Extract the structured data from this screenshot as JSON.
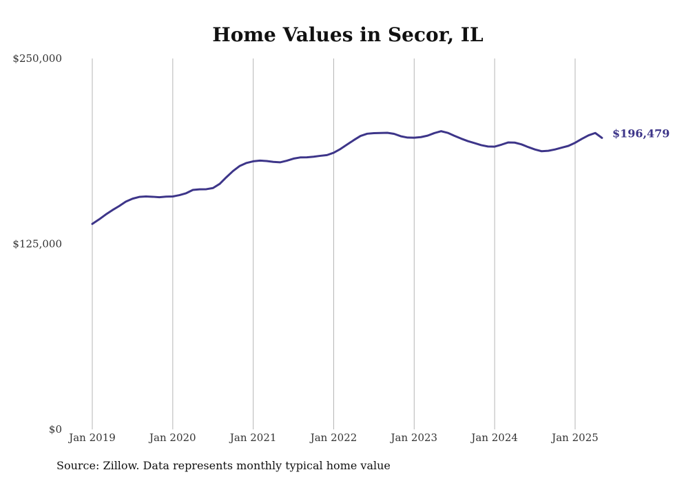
{
  "chart_data": {
    "type": "line",
    "title": "Home Values in Secor, IL",
    "xlabel": "",
    "ylabel": "",
    "ylim": [
      0,
      250000
    ],
    "xlim": [
      "2019-01",
      "2025-05"
    ],
    "grid": "vertical",
    "legend": "none",
    "line_color": "#3d3589",
    "grid_color": "#b5b5b5",
    "y_ticks": [
      {
        "value": 0,
        "label": "$0"
      },
      {
        "value": 125000,
        "label": "$125,000"
      },
      {
        "value": 250000,
        "label": "$250,000"
      }
    ],
    "x_ticks": [
      {
        "value": "2019-01",
        "label": "Jan 2019"
      },
      {
        "value": "2020-01",
        "label": "Jan 2020"
      },
      {
        "value": "2021-01",
        "label": "Jan 2021"
      },
      {
        "value": "2022-01",
        "label": "Jan 2022"
      },
      {
        "value": "2023-01",
        "label": "Jan 2023"
      },
      {
        "value": "2024-01",
        "label": "Jan 2024"
      },
      {
        "value": "2025-01",
        "label": "Jan 2025"
      }
    ],
    "end_label": "$196,479",
    "series": [
      {
        "x": [
          "2019-01",
          "2019-02",
          "2019-03",
          "2019-04",
          "2019-05",
          "2019-06",
          "2019-07",
          "2019-08",
          "2019-09",
          "2019-10",
          "2019-11",
          "2019-12",
          "2020-01",
          "2020-02",
          "2020-03",
          "2020-04",
          "2020-05",
          "2020-06",
          "2020-07",
          "2020-08",
          "2020-09",
          "2020-10",
          "2020-11",
          "2020-12",
          "2021-01",
          "2021-02",
          "2021-03",
          "2021-04",
          "2021-05",
          "2021-06",
          "2021-07",
          "2021-08",
          "2021-09",
          "2021-10",
          "2021-11",
          "2021-12",
          "2022-01",
          "2022-02",
          "2022-03",
          "2022-04",
          "2022-05",
          "2022-06",
          "2022-07",
          "2022-08",
          "2022-09",
          "2022-10",
          "2022-11",
          "2022-12",
          "2023-01",
          "2023-02",
          "2023-03",
          "2023-04",
          "2023-05",
          "2023-06",
          "2023-07",
          "2023-08",
          "2023-09",
          "2023-10",
          "2023-11",
          "2023-12",
          "2024-01",
          "2024-02",
          "2024-03",
          "2024-04",
          "2024-05",
          "2024-06",
          "2024-07",
          "2024-08",
          "2024-09",
          "2024-10",
          "2024-11",
          "2024-12",
          "2025-01",
          "2025-02",
          "2025-03",
          "2025-04",
          "2025-05"
        ],
        "values": [
          138500,
          141500,
          144800,
          147800,
          150500,
          153500,
          155500,
          156700,
          157000,
          156800,
          156500,
          156900,
          157000,
          157900,
          159200,
          161400,
          161800,
          161900,
          162700,
          165500,
          170000,
          174200,
          177600,
          179600,
          180700,
          181200,
          180900,
          180300,
          180000,
          181100,
          182500,
          183300,
          183400,
          183800,
          184400,
          184900,
          186500,
          189000,
          192000,
          195000,
          197800,
          199300,
          199700,
          199800,
          199900,
          199200,
          197600,
          196700,
          196600,
          197000,
          198000,
          199700,
          201000,
          199900,
          197900,
          196000,
          194300,
          193000,
          191600,
          190700,
          190600,
          191900,
          193400,
          193300,
          192100,
          190300,
          188700,
          187500,
          187800,
          188700,
          189900,
          191100,
          193200,
          195800,
          198200,
          199800,
          196479
        ]
      }
    ]
  },
  "source_note": "Source: Zillow. Data represents monthly typical home value"
}
